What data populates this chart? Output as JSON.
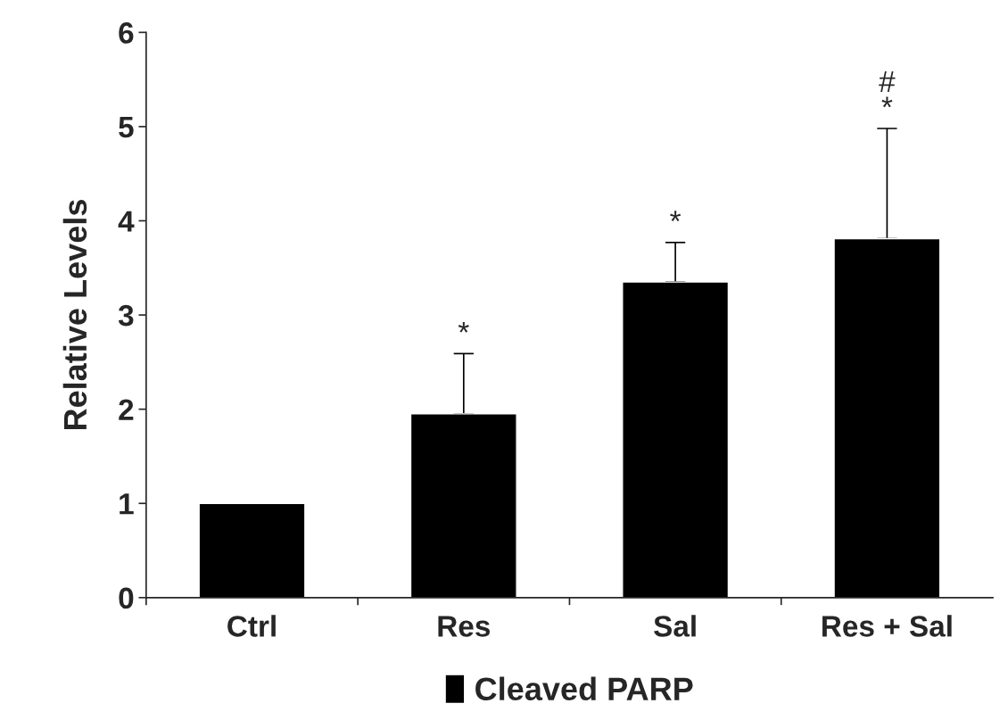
{
  "chart_data": {
    "type": "bar",
    "ylabel": "Relative Levels",
    "categories": [
      "Ctrl",
      "Res",
      "Sal",
      "Res + Sal"
    ],
    "series": [
      {
        "name": "Cleaved PARP",
        "color": "#000000",
        "values": [
          1.0,
          1.95,
          3.35,
          3.81
        ],
        "errors": [
          null,
          [
            1.95,
            2.59
          ],
          [
            3.35,
            3.77
          ],
          [
            3.81,
            4.98
          ]
        ]
      }
    ],
    "ylim": [
      0,
      6
    ],
    "yticks": [
      0,
      1,
      2,
      3,
      4,
      5,
      6
    ],
    "grid": false,
    "legend": "bottom",
    "annotations": [
      {
        "text": "*",
        "x": "Res",
        "y": 2.59
      },
      {
        "text": "*",
        "x": "Sal",
        "y": 3.77
      },
      {
        "text": "#\n*",
        "x": "Res + Sal",
        "y": 4.98
      }
    ]
  }
}
